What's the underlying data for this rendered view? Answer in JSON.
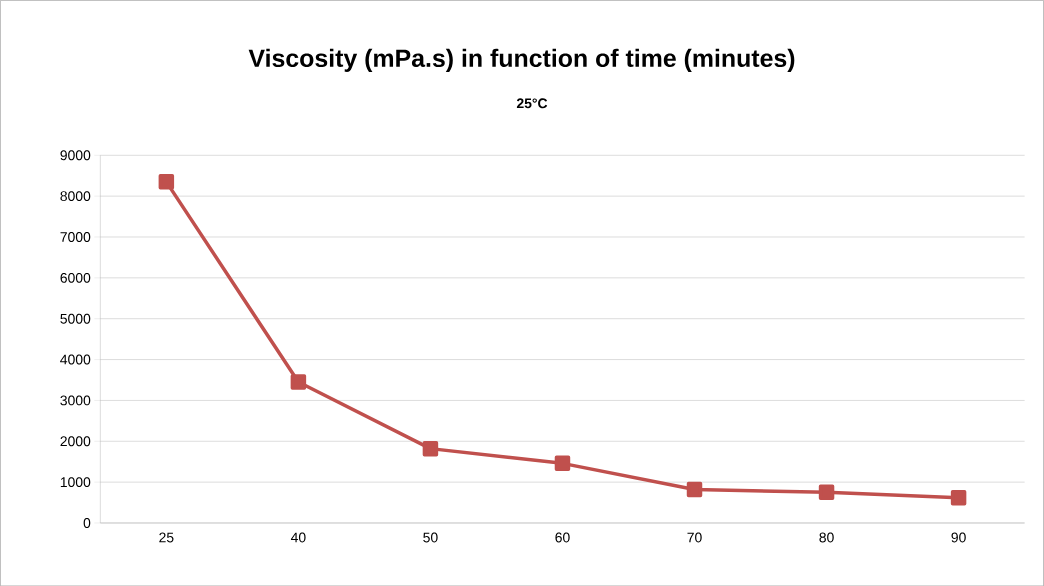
{
  "chart_data": {
    "type": "line",
    "title": "Viscosity (mPa.s) in function of time (minutes)",
    "subtitle": "25°C",
    "categories": [
      "25",
      "40",
      "50",
      "60",
      "70",
      "80",
      "90"
    ],
    "series": [
      {
        "color": "#c0504d",
        "values": [
          8350,
          3450,
          1820,
          1460,
          820,
          750,
          620
        ]
      }
    ],
    "ylim": [
      0,
      9000
    ],
    "yticks": [
      0,
      1000,
      2000,
      3000,
      4000,
      5000,
      6000,
      7000,
      8000,
      9000
    ],
    "grid": "y",
    "marker": "square",
    "line_style": "solid"
  }
}
